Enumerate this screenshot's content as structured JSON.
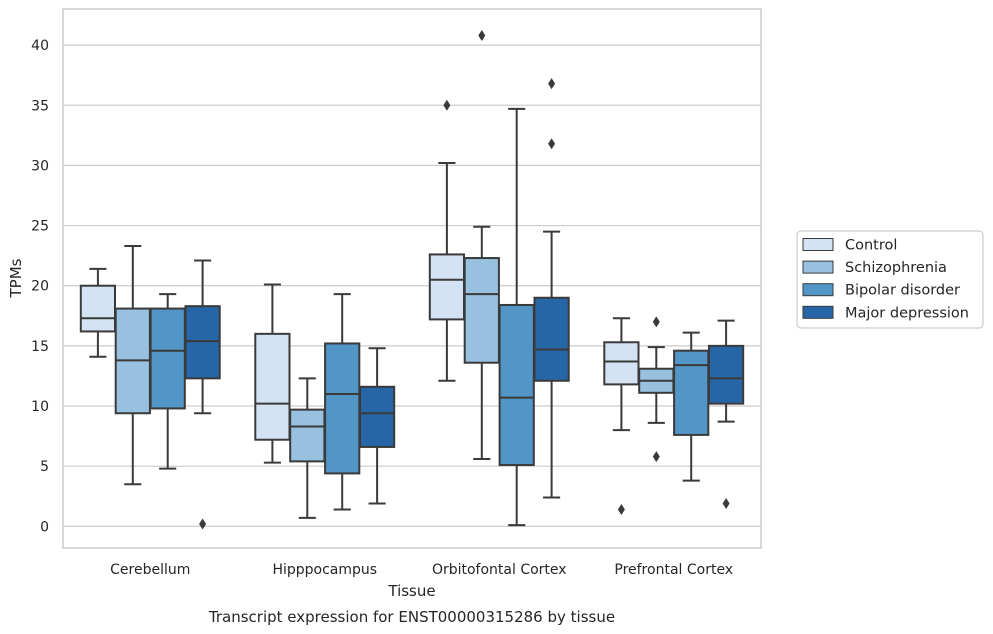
{
  "chart_data": {
    "type": "box",
    "title": "Transcript expression for ENST00000315286 by tissue",
    "xlabel": "Tissue",
    "ylabel": "TPMs",
    "ylim": [
      -1.8,
      43
    ],
    "yticks": [
      0,
      5,
      10,
      15,
      20,
      25,
      30,
      35,
      40
    ],
    "grid": true,
    "legend_position": "right",
    "categories": [
      "Cerebellum",
      "Hipppocampus",
      "Orbitofontal Cortex",
      "Prefrontal Cortex"
    ],
    "series": [
      {
        "name": "Control",
        "color": "#d4e3f3",
        "boxes": [
          {
            "whislo": 14.1,
            "q1": 16.2,
            "med": 17.3,
            "q3": 20.0,
            "whishi": 21.4,
            "fliers": []
          },
          {
            "whislo": 5.3,
            "q1": 7.2,
            "med": 10.2,
            "q3": 16.0,
            "whishi": 20.1,
            "fliers": []
          },
          {
            "whislo": 12.1,
            "q1": 17.2,
            "med": 20.5,
            "q3": 22.6,
            "whishi": 30.2,
            "fliers": [
              35.0
            ]
          },
          {
            "whislo": 8.0,
            "q1": 11.8,
            "med": 13.7,
            "q3": 15.3,
            "whishi": 17.3,
            "fliers": [
              1.4
            ]
          }
        ]
      },
      {
        "name": "Schizophrenia",
        "color": "#97c1df",
        "boxes": [
          {
            "whislo": 3.5,
            "q1": 9.4,
            "med": 13.8,
            "q3": 18.1,
            "whishi": 23.3,
            "fliers": []
          },
          {
            "whislo": 0.7,
            "q1": 5.4,
            "med": 8.3,
            "q3": 9.7,
            "whishi": 12.3,
            "fliers": []
          },
          {
            "whislo": 5.6,
            "q1": 13.6,
            "med": 19.3,
            "q3": 22.3,
            "whishi": 24.9,
            "fliers": [
              40.8
            ]
          },
          {
            "whislo": 8.6,
            "q1": 11.1,
            "med": 12.1,
            "q3": 13.1,
            "whishi": 14.9,
            "fliers": [
              17.0,
              5.8
            ]
          }
        ]
      },
      {
        "name": "Bipolar disorder",
        "color": "#5296c8",
        "boxes": [
          {
            "whislo": 4.8,
            "q1": 9.8,
            "med": 14.6,
            "q3": 18.1,
            "whishi": 19.3,
            "fliers": []
          },
          {
            "whislo": 1.4,
            "q1": 4.4,
            "med": 11.0,
            "q3": 15.2,
            "whishi": 19.3,
            "fliers": []
          },
          {
            "whislo": 0.1,
            "q1": 5.1,
            "med": 10.7,
            "q3": 18.4,
            "whishi": 34.7,
            "fliers": []
          },
          {
            "whislo": 3.8,
            "q1": 7.6,
            "med": 13.4,
            "q3": 14.6,
            "whishi": 16.1,
            "fliers": []
          }
        ]
      },
      {
        "name": "Major depression",
        "color": "#2666a6",
        "boxes": [
          {
            "whislo": 9.4,
            "q1": 12.3,
            "med": 15.4,
            "q3": 18.3,
            "whishi": 22.1,
            "fliers": [
              0.2
            ]
          },
          {
            "whislo": 1.9,
            "q1": 6.6,
            "med": 9.4,
            "q3": 11.6,
            "whishi": 14.8,
            "fliers": []
          },
          {
            "whislo": 2.4,
            "q1": 12.1,
            "med": 14.7,
            "q3": 19.0,
            "whishi": 24.5,
            "fliers": [
              36.8,
              31.8
            ]
          },
          {
            "whislo": 8.7,
            "q1": 10.2,
            "med": 12.3,
            "q3": 15.0,
            "whishi": 17.1,
            "fliers": [
              1.9
            ]
          }
        ]
      }
    ]
  }
}
